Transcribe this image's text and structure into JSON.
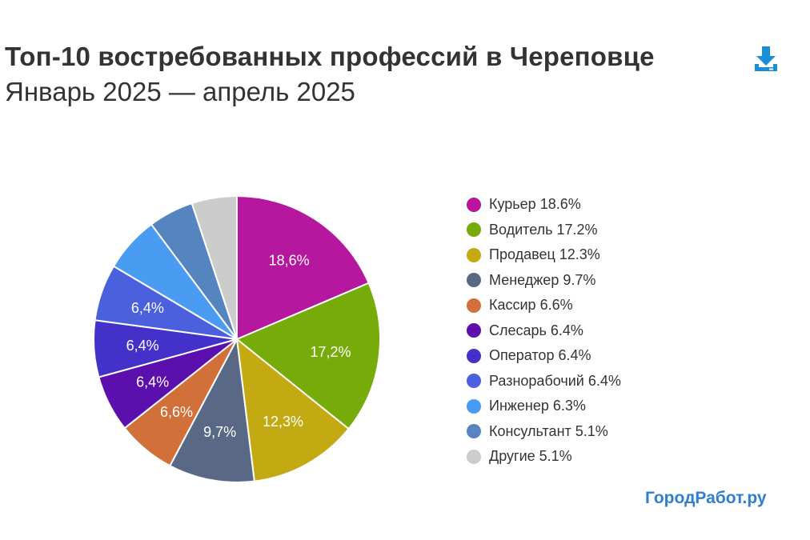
{
  "header": {
    "title": "Топ-10 востребованных профессий в Череповце",
    "subtitle": "Январь 2025 — апрель 2025",
    "download_icon": "download-icon",
    "download_color": "#1a8fd6"
  },
  "chart_data": {
    "type": "pie",
    "title": "Топ-10 востребованных профессий в Череповце",
    "subtitle": "Январь 2025 — апрель 2025",
    "legend_placement": "right",
    "slices": [
      {
        "label": "Курьер",
        "value": 18.6,
        "legend_text": "Курьер 18.6%",
        "slice_label": "18,6%",
        "color": "#b5179e"
      },
      {
        "label": "Водитель",
        "value": 17.2,
        "legend_text": "Водитель 17.2%",
        "slice_label": "17,2%",
        "color": "#76ab0a"
      },
      {
        "label": "Продавец",
        "value": 12.3,
        "legend_text": "Продавец 12.3%",
        "slice_label": "12,3%",
        "color": "#c4aa12"
      },
      {
        "label": "Менеджер",
        "value": 9.7,
        "legend_text": "Менеджер 9.7%",
        "slice_label": "9,7%",
        "color": "#596884"
      },
      {
        "label": "Кассир",
        "value": 6.6,
        "legend_text": "Кассир 6.6%",
        "slice_label": "6,6%",
        "color": "#d2703a"
      },
      {
        "label": "Слесарь",
        "value": 6.4,
        "legend_text": "Слесарь 6.4%",
        "slice_label": "6,4%",
        "color": "#5b0fad"
      },
      {
        "label": "Оператор",
        "value": 6.4,
        "legend_text": "Оператор 6.4%",
        "slice_label": "6,4%",
        "color": "#4431c9"
      },
      {
        "label": "Разнорабочий",
        "value": 6.4,
        "legend_text": "Разнорабочий 6.4%",
        "slice_label": "6,4%",
        "color": "#4a60dc"
      },
      {
        "label": "Инженер",
        "value": 6.3,
        "legend_text": "Инженер 6.3%",
        "slice_label": "",
        "color": "#4a9bf2"
      },
      {
        "label": "Консультант",
        "value": 5.1,
        "legend_text": "Консультант 5.1%",
        "slice_label": "",
        "color": "#5585bf"
      },
      {
        "label": "Другие",
        "value": 5.1,
        "legend_text": "Другие 5.1%",
        "slice_label": "",
        "color": "#cccccc"
      }
    ]
  },
  "footer": {
    "brand": "ГородРабот.ру"
  }
}
